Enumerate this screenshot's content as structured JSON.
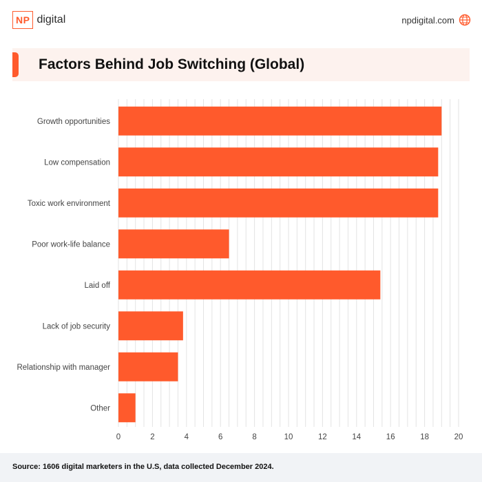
{
  "brand": {
    "logo_box": "NP",
    "logo_word": "digital",
    "site": "npdigital.com"
  },
  "colors": {
    "accent": "#ff5a2c",
    "bar": "#ff5a2c",
    "grid": "#e3e3e3",
    "text": "#444444"
  },
  "chart_data": {
    "type": "bar",
    "orientation": "horizontal",
    "title": "Factors Behind Job Switching (Global)",
    "categories": [
      "Growth opportunities",
      "Low compensation",
      "Toxic work environment",
      "Poor work-life balance",
      "Laid off",
      "Lack of job security",
      "Relationship with manager",
      "Other"
    ],
    "values": [
      19.0,
      18.8,
      18.8,
      6.5,
      15.4,
      3.8,
      3.5,
      1.0
    ],
    "xlim": [
      0,
      20
    ],
    "xticks": [
      "0",
      "2",
      "4",
      "6",
      "8",
      "10",
      "12",
      "14",
      "16",
      "18",
      "20"
    ],
    "grid": true
  },
  "footer": {
    "source": "Source: 1606 digital marketers in the U.S, data collected December 2024."
  }
}
